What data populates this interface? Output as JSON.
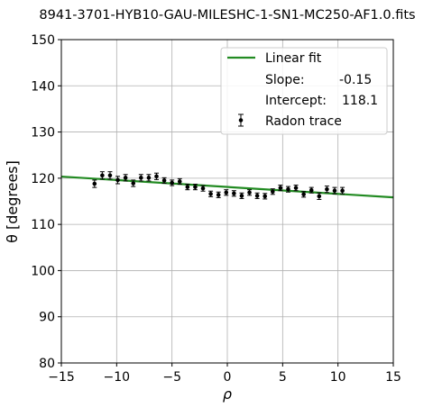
{
  "chart_data": {
    "type": "scatter",
    "title": "8941-3701-HYB10-GAU-MILESHC-1-SN1-MC250-AF1.0.fits",
    "xlabel": "ρ",
    "ylabel": "θ [degrees]",
    "xlim": [
      -15,
      15
    ],
    "ylim": [
      80,
      150
    ],
    "xticks": [
      -15,
      -10,
      -5,
      0,
      5,
      10,
      15
    ],
    "yticks": [
      80,
      90,
      100,
      110,
      120,
      130,
      140,
      150
    ],
    "xtick_labels": [
      "−15",
      "−10",
      "−5",
      "0",
      "5",
      "10",
      "15"
    ],
    "ytick_labels": [
      "80",
      "90",
      "100",
      "110",
      "120",
      "130",
      "140",
      "150"
    ],
    "grid": true,
    "legend_position": "top-right",
    "legend": {
      "fit_label": "Linear fit",
      "slope_label": "Slope:",
      "slope_value": "-0.15",
      "intercept_label": "Intercept:",
      "intercept_value": "118.1",
      "trace_label": "Radon trace"
    },
    "fit": {
      "slope": -0.15,
      "intercept": 118.1,
      "color": "#228b22"
    },
    "trace_color": "#000000",
    "points": [
      {
        "x": -12.0,
        "y": 118.8,
        "err": 0.8
      },
      {
        "x": -11.3,
        "y": 120.6,
        "err": 0.8
      },
      {
        "x": -10.6,
        "y": 120.6,
        "err": 0.8
      },
      {
        "x": -9.9,
        "y": 119.6,
        "err": 0.8
      },
      {
        "x": -9.2,
        "y": 120.1,
        "err": 0.7
      },
      {
        "x": -8.5,
        "y": 118.9,
        "err": 0.7
      },
      {
        "x": -7.8,
        "y": 120.1,
        "err": 0.7
      },
      {
        "x": -7.1,
        "y": 120.1,
        "err": 0.7
      },
      {
        "x": -6.4,
        "y": 120.4,
        "err": 0.7
      },
      {
        "x": -5.7,
        "y": 119.5,
        "err": 0.6
      },
      {
        "x": -5.0,
        "y": 119.0,
        "err": 0.6
      },
      {
        "x": -4.3,
        "y": 119.3,
        "err": 0.6
      },
      {
        "x": -3.6,
        "y": 118.1,
        "err": 0.6
      },
      {
        "x": -2.9,
        "y": 118.1,
        "err": 0.6
      },
      {
        "x": -2.2,
        "y": 117.8,
        "err": 0.6
      },
      {
        "x": -1.5,
        "y": 116.6,
        "err": 0.6
      },
      {
        "x": -0.8,
        "y": 116.4,
        "err": 0.6
      },
      {
        "x": -0.1,
        "y": 116.9,
        "err": 0.6
      },
      {
        "x": 0.6,
        "y": 116.7,
        "err": 0.6
      },
      {
        "x": 1.3,
        "y": 116.2,
        "err": 0.6
      },
      {
        "x": 2.0,
        "y": 116.9,
        "err": 0.6
      },
      {
        "x": 2.7,
        "y": 116.2,
        "err": 0.6
      },
      {
        "x": 3.4,
        "y": 116.1,
        "err": 0.6
      },
      {
        "x": 4.1,
        "y": 117.1,
        "err": 0.6
      },
      {
        "x": 4.8,
        "y": 117.9,
        "err": 0.6
      },
      {
        "x": 5.5,
        "y": 117.6,
        "err": 0.6
      },
      {
        "x": 6.2,
        "y": 117.9,
        "err": 0.6
      },
      {
        "x": 6.9,
        "y": 116.5,
        "err": 0.6
      },
      {
        "x": 7.6,
        "y": 117.4,
        "err": 0.6
      },
      {
        "x": 8.3,
        "y": 116.1,
        "err": 0.7
      },
      {
        "x": 9.0,
        "y": 117.6,
        "err": 0.7
      },
      {
        "x": 9.7,
        "y": 117.3,
        "err": 0.7
      },
      {
        "x": 10.4,
        "y": 117.3,
        "err": 0.7
      }
    ]
  }
}
